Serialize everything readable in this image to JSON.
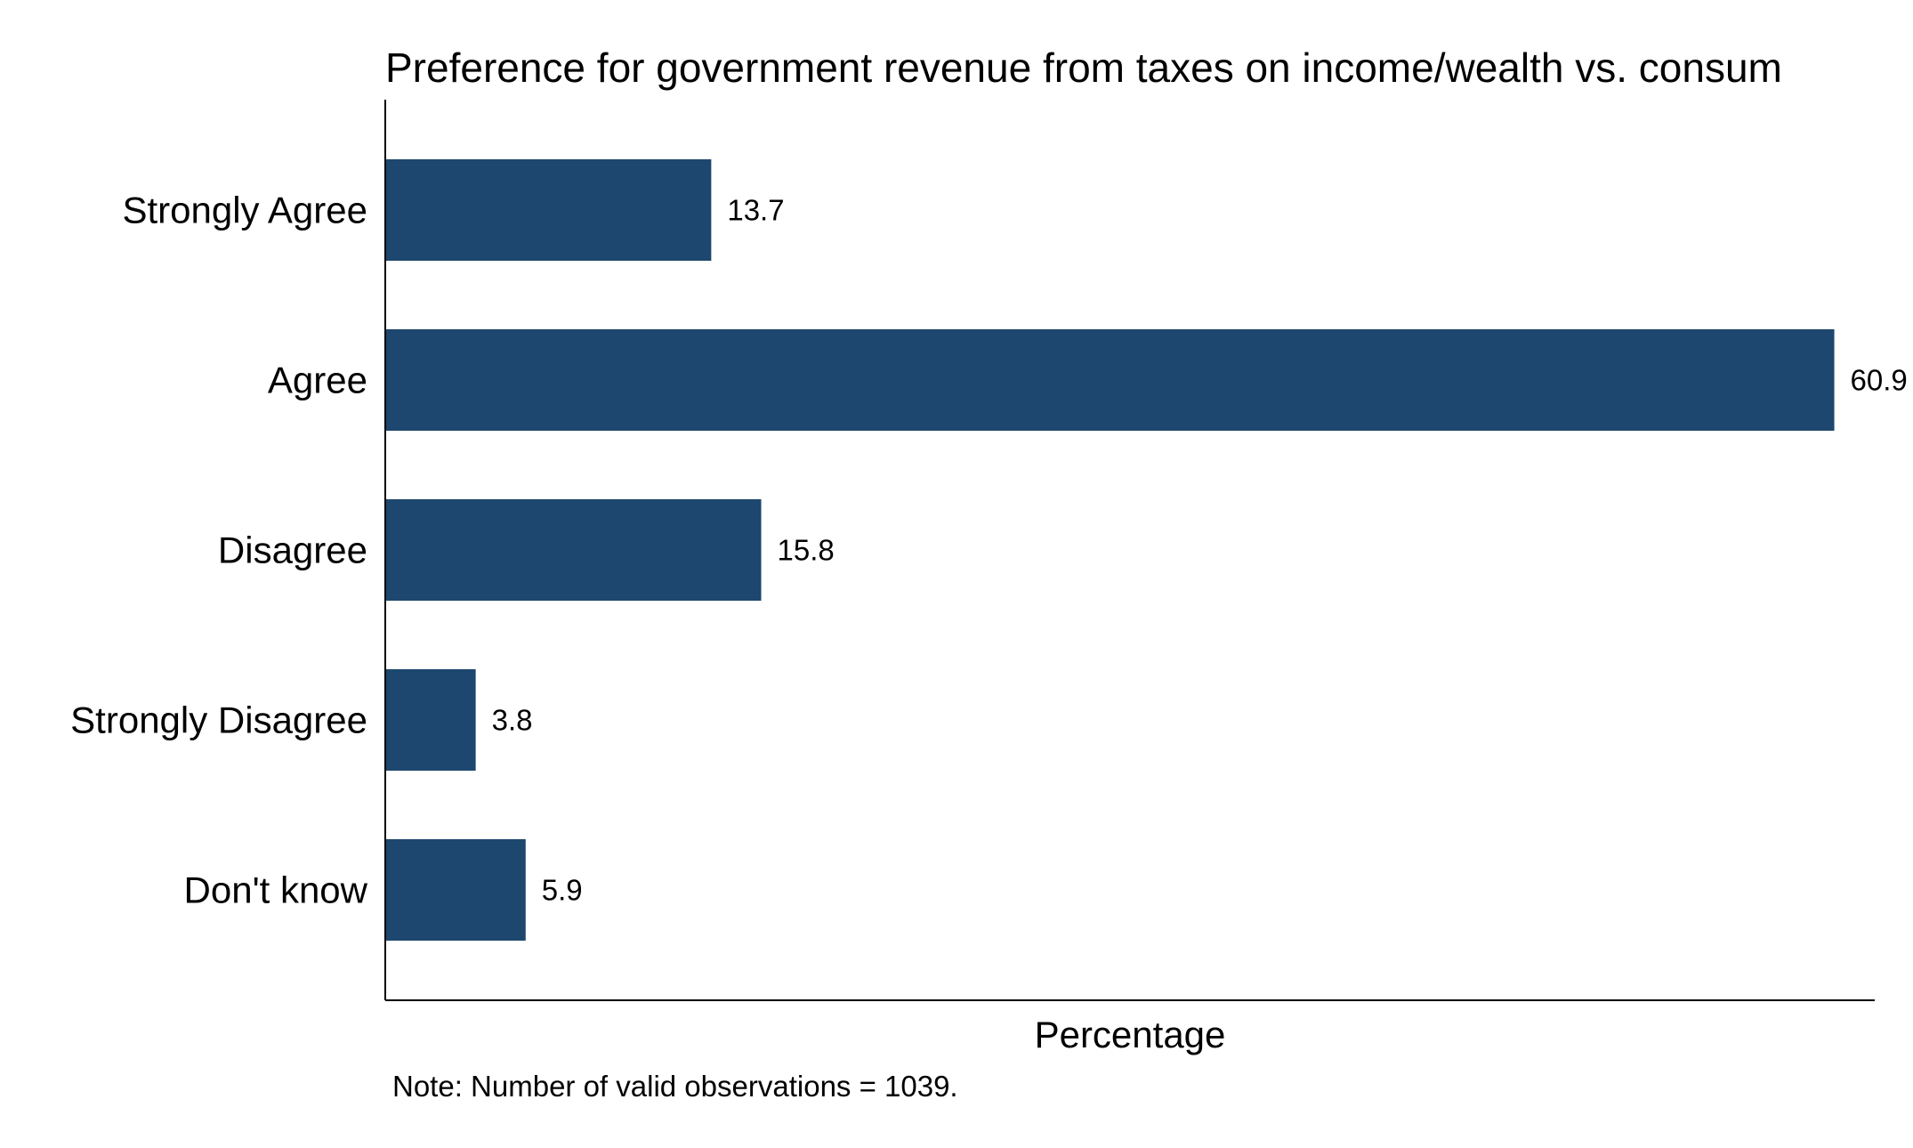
{
  "chart_data": {
    "type": "bar",
    "orientation": "horizontal",
    "title": "Preference for government revenue from taxes on income/wealth vs. consum",
    "xlabel": "Percentage",
    "ylabel": "",
    "note": "Note: Number of valid observations = 1039.",
    "categories": [
      "Strongly Agree",
      "Agree",
      "Disagree",
      "Strongly Disagree",
      "Don't know"
    ],
    "values": [
      13.7,
      60.9,
      15.8,
      3.8,
      5.9
    ],
    "value_labels": [
      "13.7",
      "60.9",
      "15.8",
      "3.8",
      "5.9"
    ],
    "xlim": [
      0,
      62.6
    ],
    "bar_color": "#1d476e",
    "grid": false,
    "legend": "none"
  }
}
